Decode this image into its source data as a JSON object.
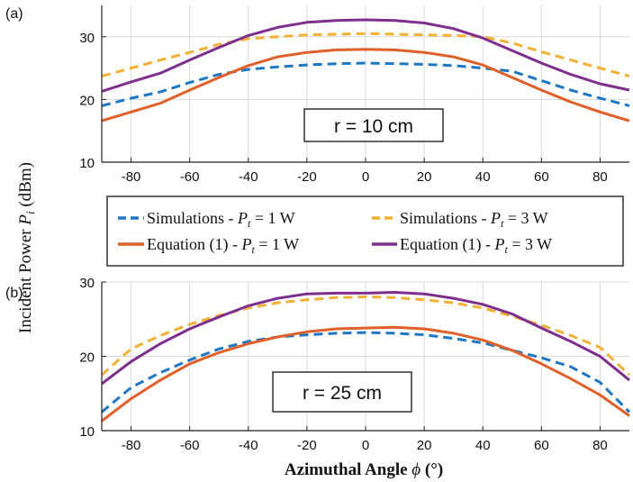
{
  "figure": {
    "ylabel_main": "Incident Power ",
    "ylabel_var": "P",
    "ylabel_sub": "i",
    "ylabel_unit": " (dBm)",
    "xlabel_main": "Azimuthal Angle ",
    "xlabel_var": "ϕ",
    "xlabel_unit": " (°)"
  },
  "legend": {
    "items": [
      {
        "prefix": "Simulations - ",
        "var": "P",
        "sub": "t",
        "suffix": " = 1 W",
        "color": "#1f77c4",
        "dashed": true
      },
      {
        "prefix": "Simulations - ",
        "var": "P",
        "sub": "t",
        "suffix": " = 3 W",
        "color": "#f2b134",
        "dashed": true
      },
      {
        "prefix": "Equation (1) - ",
        "var": "P",
        "sub": "t",
        "suffix": " = 1 W",
        "color": "#e0602a",
        "dashed": false
      },
      {
        "prefix": "Equation (1) - ",
        "var": "P",
        "sub": "t",
        "suffix": " = 3 W",
        "color": "#7e2f8e",
        "dashed": false
      }
    ]
  },
  "chart_data": [
    {
      "type": "line",
      "panel_label": "(a)",
      "annotation": "r = 10 cm",
      "xlim": [
        -90,
        90
      ],
      "ylim": [
        10,
        35
      ],
      "xticks": [
        -80,
        -60,
        -40,
        -20,
        0,
        20,
        40,
        60,
        80
      ],
      "yticks": [
        10,
        20,
        30
      ],
      "grid": true,
      "x": [
        -90,
        -80,
        -70,
        -60,
        -50,
        -40,
        -30,
        -20,
        -10,
        0,
        10,
        20,
        30,
        40,
        50,
        60,
        70,
        80,
        90
      ],
      "series": [
        {
          "color": "#1f77c4",
          "dashed": true,
          "values": [
            19.0,
            20.2,
            21.2,
            22.7,
            24.0,
            24.8,
            25.2,
            25.5,
            25.7,
            25.8,
            25.7,
            25.6,
            25.4,
            25.0,
            24.5,
            23.0,
            21.5,
            20.2,
            19.0
          ]
        },
        {
          "color": "#f2b134",
          "dashed": true,
          "values": [
            23.7,
            25.0,
            26.3,
            27.5,
            28.8,
            29.7,
            30.0,
            30.3,
            30.4,
            30.5,
            30.4,
            30.3,
            30.2,
            30.0,
            29.0,
            27.6,
            26.3,
            25.0,
            23.7
          ]
        },
        {
          "color": "#e0602a",
          "dashed": false,
          "values": [
            16.6,
            18.0,
            19.4,
            21.5,
            23.5,
            25.4,
            26.8,
            27.5,
            27.9,
            28.0,
            27.9,
            27.5,
            26.8,
            25.5,
            23.5,
            21.5,
            19.6,
            18.0,
            16.6
          ]
        },
        {
          "color": "#7e2f8e",
          "dashed": false,
          "values": [
            21.3,
            22.8,
            24.2,
            26.3,
            28.3,
            30.2,
            31.5,
            32.3,
            32.6,
            32.7,
            32.6,
            32.2,
            31.3,
            29.8,
            27.8,
            25.8,
            24.0,
            22.5,
            21.5
          ]
        }
      ]
    },
    {
      "type": "line",
      "panel_label": "(b)",
      "annotation": "r = 25 cm",
      "xlim": [
        -90,
        90
      ],
      "ylim": [
        10,
        30
      ],
      "xticks": [
        -80,
        -60,
        -40,
        -20,
        0,
        20,
        40,
        60,
        80
      ],
      "yticks": [
        10,
        20,
        30
      ],
      "grid": true,
      "x": [
        -90,
        -80,
        -70,
        -60,
        -50,
        -40,
        -30,
        -20,
        -10,
        0,
        10,
        20,
        30,
        40,
        50,
        60,
        70,
        80,
        90
      ],
      "series": [
        {
          "color": "#1f77c4",
          "dashed": true,
          "values": [
            12.5,
            15.8,
            17.8,
            19.5,
            21.0,
            22.0,
            22.6,
            22.9,
            23.1,
            23.2,
            23.1,
            22.9,
            22.4,
            21.8,
            20.8,
            19.8,
            18.6,
            16.5,
            12.5
          ]
        },
        {
          "color": "#f2b134",
          "dashed": true,
          "values": [
            17.5,
            21.0,
            22.8,
            24.3,
            25.5,
            26.5,
            27.2,
            27.6,
            27.9,
            28.0,
            27.9,
            27.6,
            27.2,
            26.5,
            25.4,
            24.2,
            22.8,
            21.2,
            17.5
          ]
        },
        {
          "color": "#e0602a",
          "dashed": false,
          "values": [
            11.3,
            14.3,
            16.8,
            19.0,
            20.5,
            21.7,
            22.6,
            23.3,
            23.7,
            23.8,
            23.9,
            23.7,
            23.1,
            22.2,
            20.8,
            19.0,
            17.0,
            14.8,
            12.0
          ]
        },
        {
          "color": "#7e2f8e",
          "dashed": false,
          "values": [
            16.3,
            19.3,
            21.7,
            23.7,
            25.3,
            26.8,
            27.8,
            28.4,
            28.5,
            28.5,
            28.6,
            28.4,
            27.8,
            27.0,
            25.7,
            23.8,
            22.0,
            20.0,
            16.8
          ]
        }
      ]
    }
  ]
}
